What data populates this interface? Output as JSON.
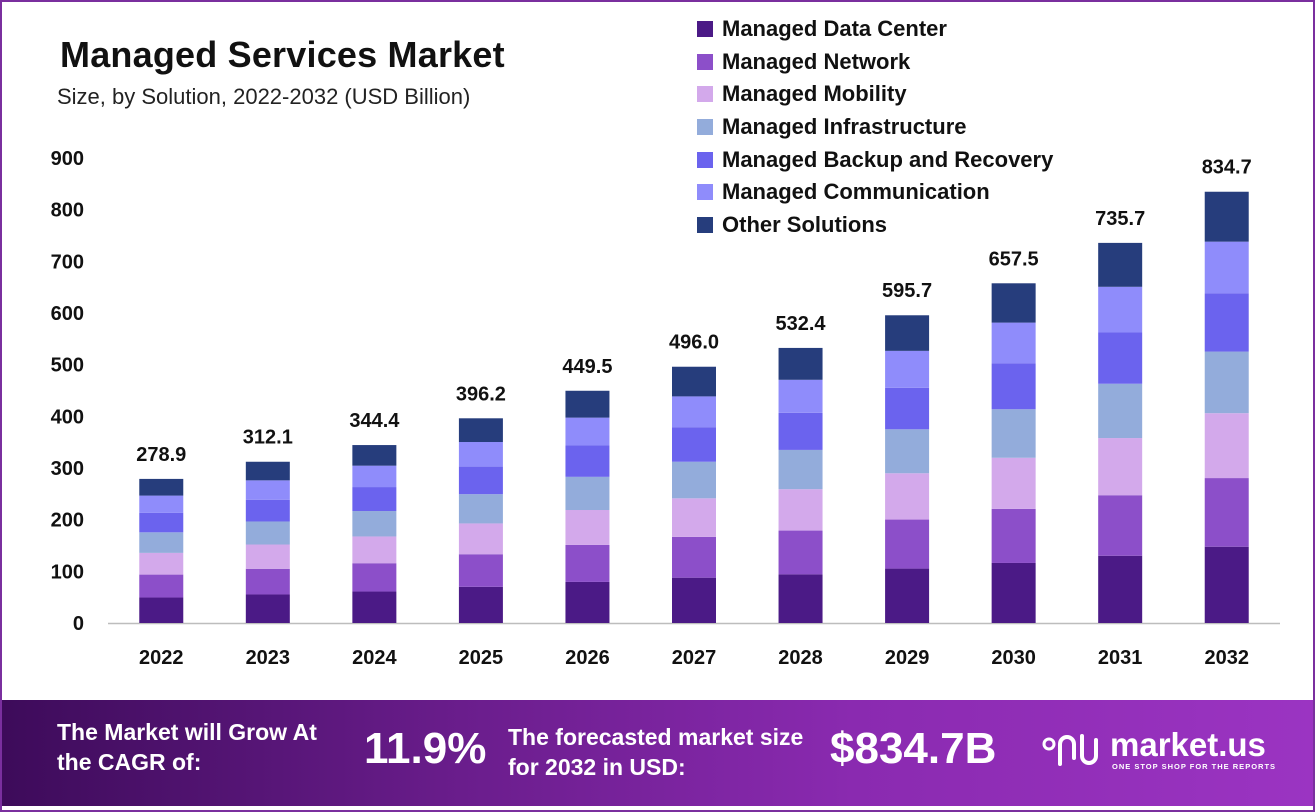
{
  "title": "Managed Services Market",
  "subtitle": "Size, by Solution, 2022-2032 (USD Billion)",
  "chart_data": {
    "type": "bar",
    "stacked": true,
    "title": "Managed Services Market",
    "subtitle": "Size, by Solution, 2022-2032 (USD Billion)",
    "xlabel": "",
    "ylabel": "",
    "ylim": [
      0,
      900
    ],
    "yticks": [
      0,
      100,
      200,
      300,
      400,
      500,
      600,
      700,
      800,
      900
    ],
    "legend_position": "top-right",
    "categories": [
      "2022",
      "2023",
      "2024",
      "2025",
      "2026",
      "2027",
      "2028",
      "2029",
      "2030",
      "2031",
      "2032"
    ],
    "totals": [
      278.9,
      312.1,
      344.4,
      396.2,
      449.5,
      496.0,
      532.4,
      595.7,
      657.5,
      735.7,
      834.7
    ],
    "total_labels": [
      "278.9",
      "312.1",
      "344.4",
      "396.2",
      "449.5",
      "496.0",
      "532.4",
      "595.7",
      "657.5",
      "735.7",
      "834.7"
    ],
    "series": [
      {
        "name": "Managed Data Center",
        "color": "#4b1a86",
        "values": [
          49.3,
          55.2,
          60.9,
          70.0,
          79.5,
          87.7,
          94.1,
          105.3,
          116.2,
          130.1,
          147.6
        ]
      },
      {
        "name": "Managed Network",
        "color": "#8c4fc9",
        "values": [
          44.4,
          49.7,
          54.8,
          63.1,
          71.6,
          79.0,
          84.8,
          94.9,
          104.7,
          117.2,
          132.9
        ]
      },
      {
        "name": "Managed Mobility",
        "color": "#d3a9eb",
        "values": [
          42.0,
          47.0,
          51.8,
          59.6,
          67.6,
          74.6,
          80.1,
          89.6,
          98.9,
          110.7,
          125.6
        ]
      },
      {
        "name": "Managed Infrastructure",
        "color": "#93acdb",
        "values": [
          39.8,
          44.6,
          49.2,
          56.6,
          64.2,
          70.8,
          76.0,
          85.1,
          93.9,
          105.1,
          119.2
        ]
      },
      {
        "name": "Managed Backup and Recovery",
        "color": "#6b63ee",
        "values": [
          37.6,
          42.1,
          46.4,
          53.4,
          60.6,
          66.9,
          71.8,
          80.3,
          88.7,
          99.2,
          112.6
        ]
      },
      {
        "name": "Managed Communication",
        "color": "#8f8cfb",
        "values": [
          33.5,
          37.5,
          41.4,
          47.6,
          54.0,
          59.6,
          63.9,
          71.5,
          79.0,
          88.4,
          100.2
        ]
      },
      {
        "name": "Other Solutions",
        "color": "#263d7c",
        "values": [
          32.3,
          36.0,
          39.9,
          45.9,
          52.0,
          57.4,
          61.7,
          68.9,
          76.1,
          85.0,
          96.6
        ]
      }
    ]
  },
  "footer": {
    "cagr_label": "The Market will Grow At the CAGR of:",
    "cagr_value": "11.9%",
    "forecast_label": "The forecasted market size for 2032 in USD:",
    "forecast_value": "$834.7B",
    "brand_name": "market.us",
    "brand_tagline": "ONE STOP SHOP FOR THE REPORTS"
  }
}
